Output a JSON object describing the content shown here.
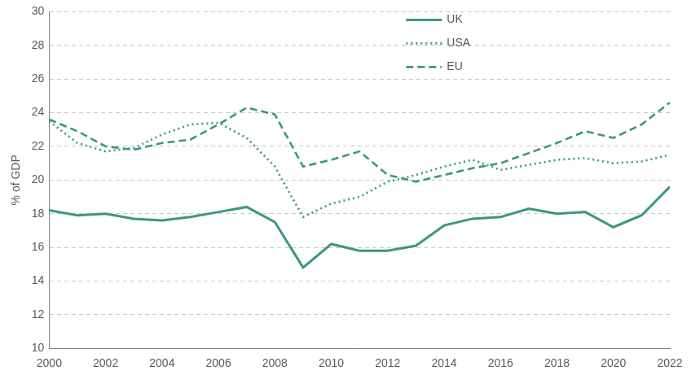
{
  "chart_data": {
    "type": "line",
    "y_label": "% of GDP",
    "x": [
      2000,
      2001,
      2002,
      2003,
      2004,
      2005,
      2006,
      2007,
      2008,
      2009,
      2010,
      2011,
      2012,
      2013,
      2014,
      2015,
      2016,
      2017,
      2018,
      2019,
      2020,
      2021,
      2022
    ],
    "series": [
      {
        "name": "UK",
        "color": "#3a9a70",
        "line_style": "solid",
        "values": [
          18.2,
          17.9,
          18.0,
          17.7,
          17.6,
          17.8,
          18.1,
          18.4,
          17.5,
          14.8,
          16.2,
          15.8,
          15.8,
          16.1,
          17.3,
          17.7,
          17.8,
          18.3,
          18.0,
          18.1,
          17.2,
          17.9,
          19.6
        ]
      },
      {
        "name": "USA",
        "color": "#3a9a70",
        "line_style": "dotted",
        "values": [
          23.5,
          22.2,
          21.7,
          21.9,
          22.7,
          23.3,
          23.4,
          22.5,
          20.8,
          17.8,
          18.6,
          19.0,
          19.9,
          20.3,
          20.8,
          21.2,
          20.6,
          20.9,
          21.2,
          21.3,
          21.0,
          21.1,
          21.5
        ]
      },
      {
        "name": "EU",
        "color": "#3a9a70",
        "line_style": "dashed",
        "values": [
          23.6,
          22.9,
          22.0,
          21.8,
          22.2,
          22.4,
          23.3,
          24.3,
          23.9,
          20.8,
          21.2,
          21.7,
          20.3,
          19.9,
          20.3,
          20.7,
          21.0,
          21.6,
          22.2,
          22.9,
          22.5,
          23.3,
          24.6
        ]
      }
    ],
    "xlim": [
      2000,
      2022
    ],
    "xticks": [
      2000,
      2002,
      2004,
      2006,
      2008,
      2010,
      2012,
      2014,
      2016,
      2018,
      2020,
      2022
    ],
    "ylim": [
      10,
      30
    ],
    "yticks": [
      10,
      12,
      14,
      16,
      18,
      20,
      22,
      24,
      26,
      28,
      30
    ],
    "grid": true,
    "legend": "top"
  }
}
